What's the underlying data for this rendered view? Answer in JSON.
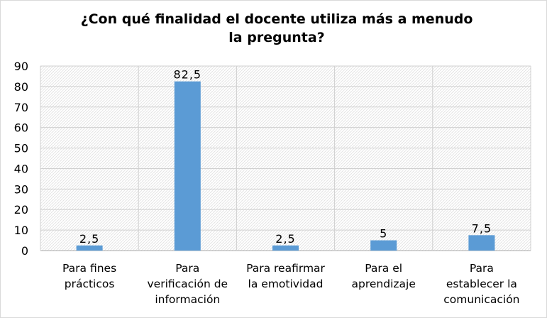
{
  "chart_data": {
    "type": "bar",
    "title": "¿Con qué finalidad el docente utiliza más a menudo\nla pregunta?",
    "xlabel": "",
    "ylabel": "",
    "categories": [
      "Para fines\nprácticos",
      "Para\nverificación de\ninformación",
      "Para reafirmar\nla emotividad",
      "Para el\naprendizaje",
      "Para\nestablecer la\ncomunicación"
    ],
    "values": [
      2.5,
      82.5,
      2.5,
      5,
      7.5
    ],
    "data_labels": [
      "2,5",
      "82,5",
      "2,5",
      "5",
      "7,5"
    ],
    "ylim": [
      0,
      90
    ],
    "yticks": [
      "0",
      "10",
      "20",
      "30",
      "40",
      "50",
      "60",
      "70",
      "80",
      "90"
    ],
    "grid": true,
    "legend": "none",
    "colors": {
      "bar": "#5b9bd5",
      "grid": "#d0d0d0",
      "axis": "#a6a6a6"
    }
  }
}
